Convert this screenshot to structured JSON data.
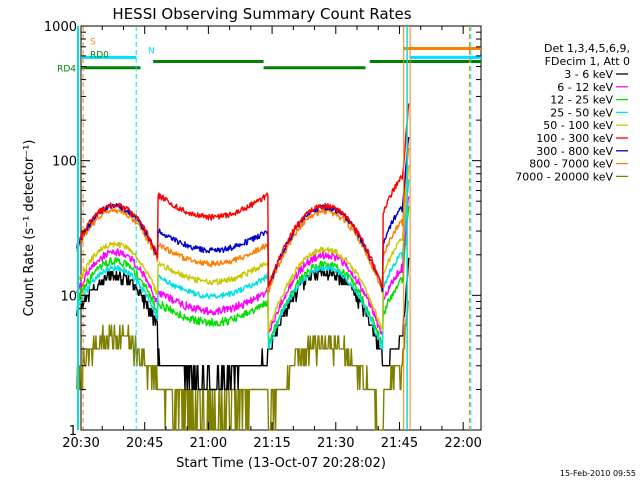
{
  "chart_data": {
    "type": "line",
    "title": "HESSI Observing Summary Count Rates",
    "xlabel": "Start Time (13-Oct-07 20:28:02)",
    "ylabel": "Count Rate (s⁻¹ detector⁻¹)",
    "yscale": "log",
    "ylim": [
      1,
      1000
    ],
    "xlim_minutes": [
      20.5,
      22.07
    ],
    "x_ticks": [
      "20:30",
      "20:45",
      "21:00",
      "21:15",
      "21:30",
      "21:45",
      "22:00"
    ],
    "y_ticks": [
      "1",
      "10",
      "100",
      "1000"
    ],
    "footer": "15-Feb-2010 09:55",
    "legend": {
      "placement": "right",
      "header": [
        "Det 1,3,4,5,6,9,",
        "FDecim 1, Att 0"
      ]
    },
    "state_bars": [
      {
        "label": "S",
        "color": "#ff8000"
      },
      {
        "label": "N",
        "color": "#00e0ff"
      },
      {
        "label": "RD0",
        "color": "#008000"
      },
      {
        "label": "RD4",
        "color": "#008000"
      }
    ],
    "series": [
      {
        "name": "3 - 6 keV",
        "color": "#000000"
      },
      {
        "name": "6 - 12 keV",
        "color": "#ff00ff"
      },
      {
        "name": "12 - 25 keV",
        "color": "#00e000"
      },
      {
        "name": "25 - 50 keV",
        "color": "#00e0e0"
      },
      {
        "name": "50 - 100 keV",
        "color": "#c8c800"
      },
      {
        "name": "100 - 300 keV",
        "color": "#ff0000"
      },
      {
        "name": "300 - 800 keV",
        "color": "#0000c8"
      },
      {
        "name": "800 - 7000 keV",
        "color": "#ff8000"
      },
      {
        "name": "7000 - 20000 keV",
        "color": "#808000"
      }
    ]
  }
}
